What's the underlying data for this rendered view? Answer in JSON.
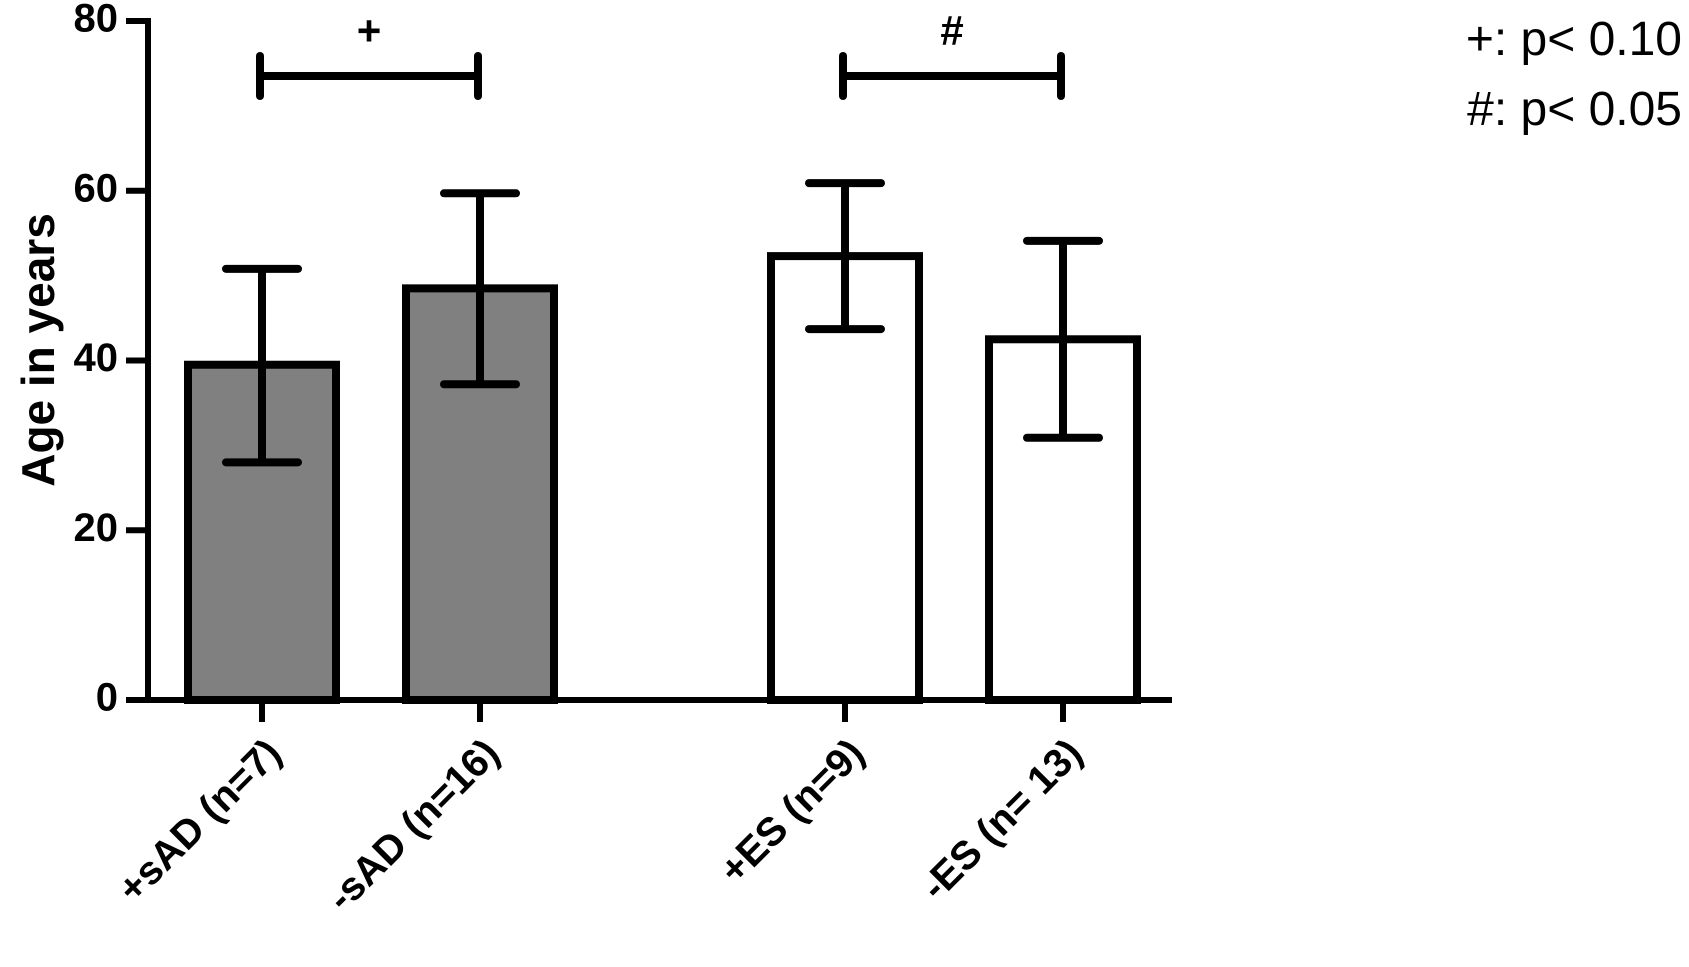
{
  "chart_data": {
    "type": "bar",
    "ylabel": "Age in years",
    "ylim": [
      0,
      80
    ],
    "yticks": [
      "0",
      "20",
      "40",
      "60",
      "80"
    ],
    "categories": [
      "+sAD (n=7)",
      "-sAD (n=16)",
      "+ES (n=9)",
      "-ES (n= 13)"
    ],
    "values": [
      39.5,
      48.5,
      52.3,
      42.5
    ],
    "error_low": [
      28.0,
      37.2,
      43.7,
      30.9
    ],
    "error_high": [
      50.8,
      59.7,
      60.9,
      54.1
    ],
    "bar_colors": [
      "#808080",
      "#808080",
      "#ffffff",
      "#ffffff"
    ],
    "grid": false,
    "significance": [
      {
        "from": 0,
        "to": 1,
        "symbol": "+"
      },
      {
        "from": 2,
        "to": 3,
        "symbol": "#"
      }
    ],
    "legend": {
      "placement": "top-right",
      "lines": [
        "+: p< 0.10",
        "#: p< 0.05"
      ]
    }
  }
}
